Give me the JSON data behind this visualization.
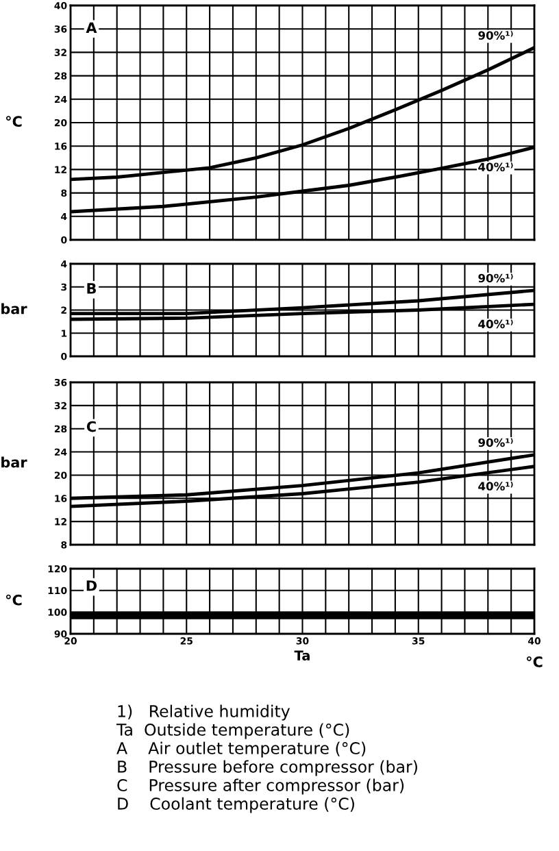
{
  "chart_data": [
    {
      "type": "line",
      "title": "A",
      "ylabel": "°C",
      "ylim": [
        0,
        40
      ],
      "yticks": [
        0,
        4,
        8,
        12,
        16,
        20,
        24,
        28,
        32,
        36,
        40
      ],
      "xlim": [
        20,
        40
      ],
      "grid": true,
      "tick_labels": "y",
      "marker": "none",
      "series": [
        {
          "name": "90%¹⁾",
          "color": "#000000",
          "x": [
            20,
            22,
            24,
            26,
            28,
            30,
            32,
            34,
            36,
            38,
            40
          ],
          "values": [
            10.3,
            10.7,
            11.5,
            12.3,
            14,
            16.2,
            19,
            22.2,
            25.5,
            29,
            32.8
          ]
        },
        {
          "name": "40%¹⁾",
          "color": "#000000",
          "x": [
            20,
            24,
            28,
            30,
            32,
            34,
            36,
            38,
            40
          ],
          "values": [
            4.8,
            5.7,
            7.3,
            8.3,
            9.3,
            10.7,
            12.2,
            13.8,
            15.8
          ]
        }
      ]
    },
    {
      "type": "line",
      "title": "B",
      "ylabel": "bar",
      "ylim": [
        0,
        4
      ],
      "yticks": [
        0,
        1,
        2,
        3,
        4
      ],
      "xlim": [
        20,
        40
      ],
      "grid": true,
      "tick_labels": "y",
      "marker": "none",
      "series": [
        {
          "name": "90%¹⁾",
          "color": "#000000",
          "x": [
            20,
            25,
            30,
            35,
            40
          ],
          "values": [
            1.85,
            1.85,
            2.1,
            2.4,
            2.85
          ]
        },
        {
          "name": "40%¹⁾",
          "color": "#000000",
          "x": [
            20,
            25,
            30,
            35,
            40
          ],
          "values": [
            1.6,
            1.65,
            1.85,
            2.0,
            2.25
          ]
        }
      ]
    },
    {
      "type": "line",
      "title": "C",
      "ylabel": "bar",
      "ylim": [
        8,
        36
      ],
      "yticks": [
        8,
        12,
        16,
        20,
        24,
        28,
        32,
        36
      ],
      "xlim": [
        20,
        40
      ],
      "grid": true,
      "tick_labels": "y",
      "marker": "none",
      "series": [
        {
          "name": "90%¹⁾",
          "color": "#000000",
          "x": [
            20,
            25,
            30,
            35,
            40
          ],
          "values": [
            16,
            16.6,
            18.2,
            20.4,
            23.5
          ]
        },
        {
          "name": "40%¹⁾",
          "color": "#000000",
          "x": [
            20,
            25,
            30,
            35,
            40
          ],
          "values": [
            14.6,
            15.5,
            16.8,
            18.8,
            21.5
          ]
        }
      ]
    },
    {
      "type": "line",
      "title": "D",
      "ylabel": "°C",
      "xlabel": "Ta",
      "ylim": [
        90,
        120
      ],
      "yticks": [
        90,
        100,
        110,
        120
      ],
      "xlim": [
        20,
        40
      ],
      "grid": true,
      "marker": "none",
      "xticks": [
        20,
        {
          "value": 21,
          "label": null
        },
        {
          "value": 22,
          "label": null
        },
        {
          "value": 23,
          "label": null
        },
        {
          "value": 24,
          "label": null
        },
        25,
        {
          "value": 26,
          "label": null
        },
        {
          "value": 27,
          "label": null
        },
        {
          "value": 28,
          "label": null
        },
        {
          "value": 29,
          "label": null
        },
        30,
        {
          "value": 31,
          "label": null
        },
        {
          "value": 32,
          "label": null
        },
        {
          "value": 33,
          "label": null
        },
        {
          "value": 34,
          "label": null
        },
        35,
        {
          "value": 36,
          "label": null
        },
        {
          "value": 37,
          "label": null
        },
        {
          "value": 38,
          "label": null
        },
        {
          "value": 39,
          "label": null
        },
        40
      ],
      "series": [
        {
          "color": "#000000",
          "x": [
            20,
            40
          ],
          "values": [
            99,
            99
          ]
        },
        {
          "color": "#000000",
          "x": [
            20,
            40
          ],
          "values": [
            97.5,
            97.5
          ]
        }
      ],
      "annotations": [
        "°C",
        "1)   Relative humidity",
        "Ta  Outside temperature (°C)",
        "A    Air outlet temperature (°C)",
        "B    Pressure before compressor (bar)",
        "C    Pressure after compressor (bar)",
        "D    Coolant temperature (°C)"
      ]
    }
  ]
}
